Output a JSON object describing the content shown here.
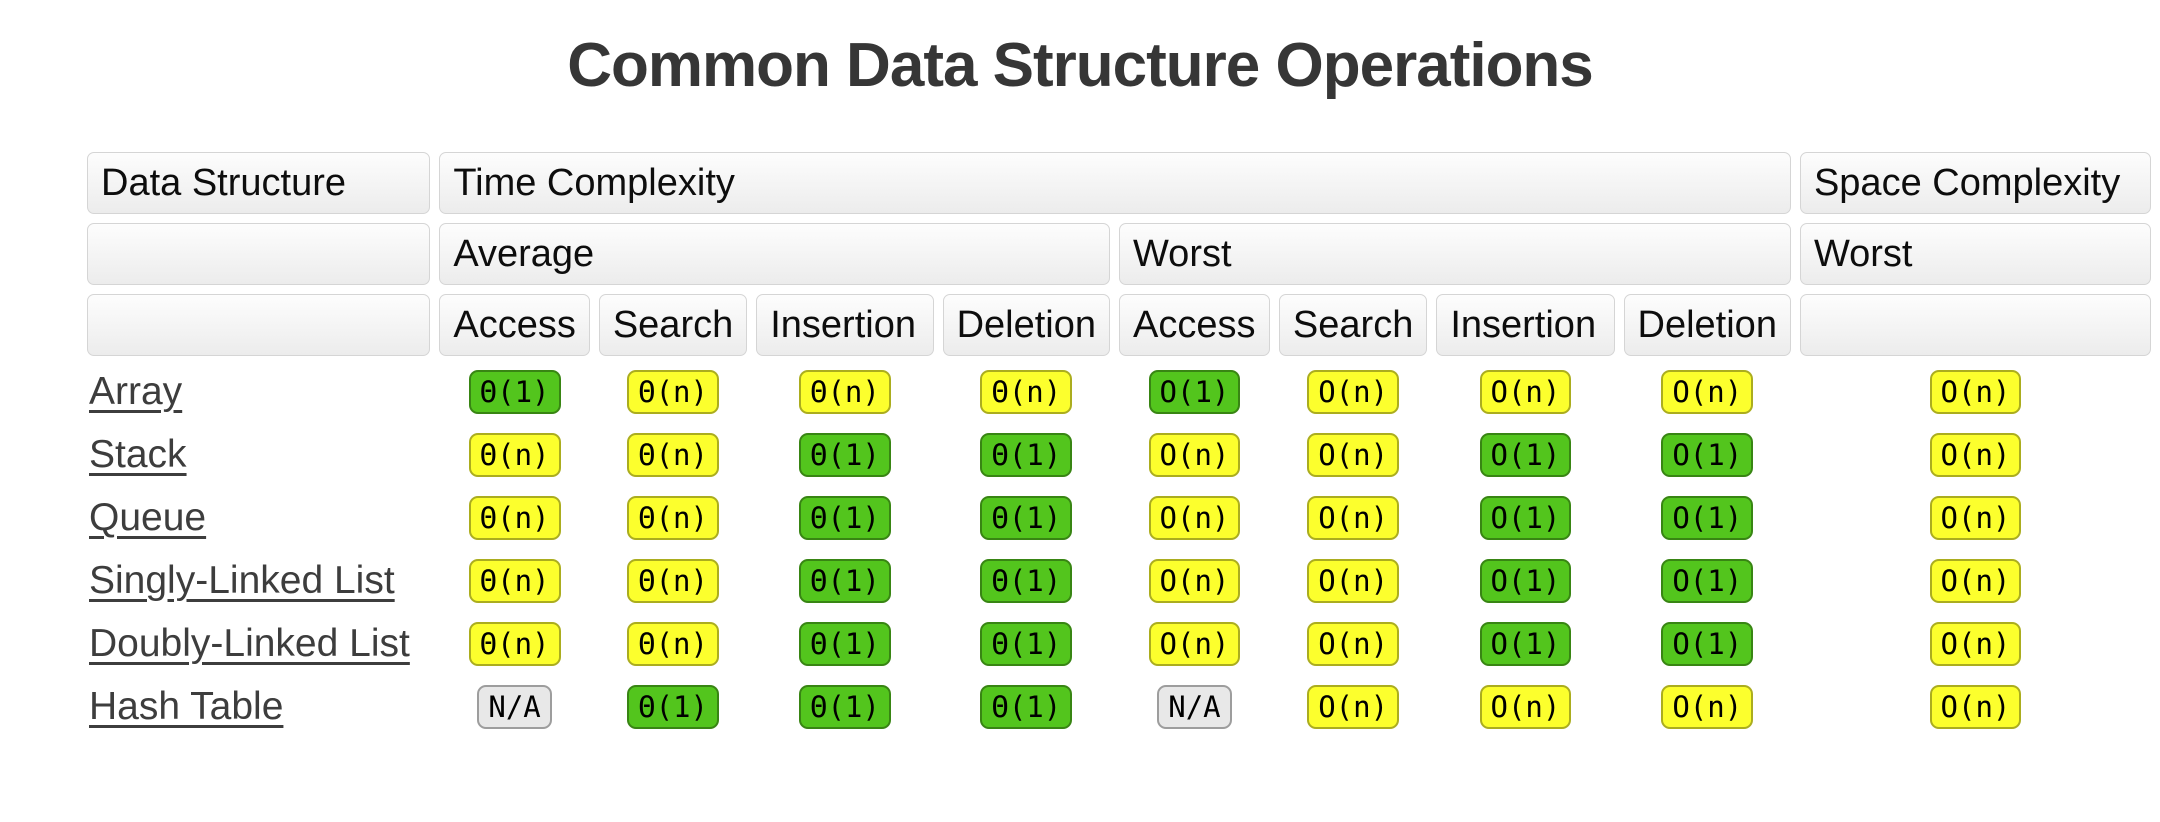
{
  "title": "Common Data Structure Operations",
  "badge_colors": {
    "green": "#53c51d",
    "yellow": "#fcff2d",
    "gray": "#e8e8e8"
  },
  "table": {
    "header": {
      "data_structure": "Data Structure",
      "time_complexity": "Time Complexity",
      "space_complexity": "Space Complexity",
      "average": "Average",
      "worst": "Worst",
      "space_worst": "Worst",
      "operations": [
        "Access",
        "Search",
        "Insertion",
        "Deletion",
        "Access",
        "Search",
        "Insertion",
        "Deletion"
      ]
    },
    "rows": [
      {
        "name": "Array",
        "cells": [
          {
            "text": "Θ(1)",
            "level": "green"
          },
          {
            "text": "Θ(n)",
            "level": "yellow"
          },
          {
            "text": "Θ(n)",
            "level": "yellow"
          },
          {
            "text": "Θ(n)",
            "level": "yellow"
          },
          {
            "text": "O(1)",
            "level": "green"
          },
          {
            "text": "O(n)",
            "level": "yellow"
          },
          {
            "text": "O(n)",
            "level": "yellow"
          },
          {
            "text": "O(n)",
            "level": "yellow"
          },
          {
            "text": "O(n)",
            "level": "yellow"
          }
        ]
      },
      {
        "name": "Stack",
        "cells": [
          {
            "text": "Θ(n)",
            "level": "yellow"
          },
          {
            "text": "Θ(n)",
            "level": "yellow"
          },
          {
            "text": "Θ(1)",
            "level": "green"
          },
          {
            "text": "Θ(1)",
            "level": "green"
          },
          {
            "text": "O(n)",
            "level": "yellow"
          },
          {
            "text": "O(n)",
            "level": "yellow"
          },
          {
            "text": "O(1)",
            "level": "green"
          },
          {
            "text": "O(1)",
            "level": "green"
          },
          {
            "text": "O(n)",
            "level": "yellow"
          }
        ]
      },
      {
        "name": "Queue",
        "cells": [
          {
            "text": "Θ(n)",
            "level": "yellow"
          },
          {
            "text": "Θ(n)",
            "level": "yellow"
          },
          {
            "text": "Θ(1)",
            "level": "green"
          },
          {
            "text": "Θ(1)",
            "level": "green"
          },
          {
            "text": "O(n)",
            "level": "yellow"
          },
          {
            "text": "O(n)",
            "level": "yellow"
          },
          {
            "text": "O(1)",
            "level": "green"
          },
          {
            "text": "O(1)",
            "level": "green"
          },
          {
            "text": "O(n)",
            "level": "yellow"
          }
        ]
      },
      {
        "name": "Singly-Linked List",
        "cells": [
          {
            "text": "Θ(n)",
            "level": "yellow"
          },
          {
            "text": "Θ(n)",
            "level": "yellow"
          },
          {
            "text": "Θ(1)",
            "level": "green"
          },
          {
            "text": "Θ(1)",
            "level": "green"
          },
          {
            "text": "O(n)",
            "level": "yellow"
          },
          {
            "text": "O(n)",
            "level": "yellow"
          },
          {
            "text": "O(1)",
            "level": "green"
          },
          {
            "text": "O(1)",
            "level": "green"
          },
          {
            "text": "O(n)",
            "level": "yellow"
          }
        ]
      },
      {
        "name": "Doubly-Linked List",
        "cells": [
          {
            "text": "Θ(n)",
            "level": "yellow"
          },
          {
            "text": "Θ(n)",
            "level": "yellow"
          },
          {
            "text": "Θ(1)",
            "level": "green"
          },
          {
            "text": "Θ(1)",
            "level": "green"
          },
          {
            "text": "O(n)",
            "level": "yellow"
          },
          {
            "text": "O(n)",
            "level": "yellow"
          },
          {
            "text": "O(1)",
            "level": "green"
          },
          {
            "text": "O(1)",
            "level": "green"
          },
          {
            "text": "O(n)",
            "level": "yellow"
          }
        ]
      },
      {
        "name": "Hash Table",
        "cells": [
          {
            "text": "N/A",
            "level": "gray"
          },
          {
            "text": "Θ(1)",
            "level": "green"
          },
          {
            "text": "Θ(1)",
            "level": "green"
          },
          {
            "text": "Θ(1)",
            "level": "green"
          },
          {
            "text": "N/A",
            "level": "gray"
          },
          {
            "text": "O(n)",
            "level": "yellow"
          },
          {
            "text": "O(n)",
            "level": "yellow"
          },
          {
            "text": "O(n)",
            "level": "yellow"
          },
          {
            "text": "O(n)",
            "level": "yellow"
          }
        ]
      }
    ]
  }
}
